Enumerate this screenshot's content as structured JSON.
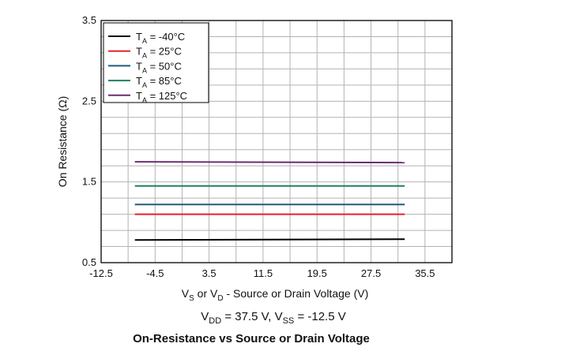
{
  "chart_data": {
    "type": "line",
    "title": "",
    "caption": "On-Resistance vs Source or Drain Voltage",
    "condition": {
      "a": "V",
      "a_sub": "DD",
      "b": " = 37.5 V, V",
      "b_sub": "SS",
      "c": " = -12.5 V"
    },
    "xlabel": {
      "a": "V",
      "a_sub": "S",
      "b": " or V",
      "b_sub": "D",
      "c": " - Source or Drain Voltage (V)"
    },
    "ylabel": "On Resistance (Ω)",
    "xlim": [
      -12.5,
      39.5
    ],
    "ylim": [
      0.5,
      3.5
    ],
    "x_ticks": [
      -12.5,
      -4.5,
      3.5,
      11.5,
      19.5,
      27.5,
      35.5
    ],
    "x_tick_labels": [
      "-12.5",
      "-4.5",
      "3.5",
      "11.5",
      "19.5",
      "27.5",
      "35.5"
    ],
    "y_ticks": [
      0.5,
      1.5,
      2.5,
      3.5
    ],
    "y_tick_labels": [
      "0.5",
      "1.5",
      "2.5",
      "3.5"
    ],
    "grid": true,
    "legend_position": "top-left",
    "series": [
      {
        "name": "-40°C",
        "color": "#000000",
        "x": [
          -7.5,
          32.5
        ],
        "y": [
          0.78,
          0.79
        ]
      },
      {
        "name": "25°C",
        "color": "#e8202a",
        "x": [
          -7.5,
          32.5
        ],
        "y": [
          1.1,
          1.1
        ]
      },
      {
        "name": "50°C",
        "color": "#1f5c7a",
        "x": [
          -7.5,
          32.5
        ],
        "y": [
          1.22,
          1.22
        ]
      },
      {
        "name": "85°C",
        "color": "#1e8062",
        "x": [
          -7.5,
          32.5
        ],
        "y": [
          1.45,
          1.45
        ]
      },
      {
        "name": "125°C",
        "color": "#6b2c73",
        "x": [
          -7.5,
          32.5
        ],
        "y": [
          1.75,
          1.74
        ]
      }
    ]
  }
}
